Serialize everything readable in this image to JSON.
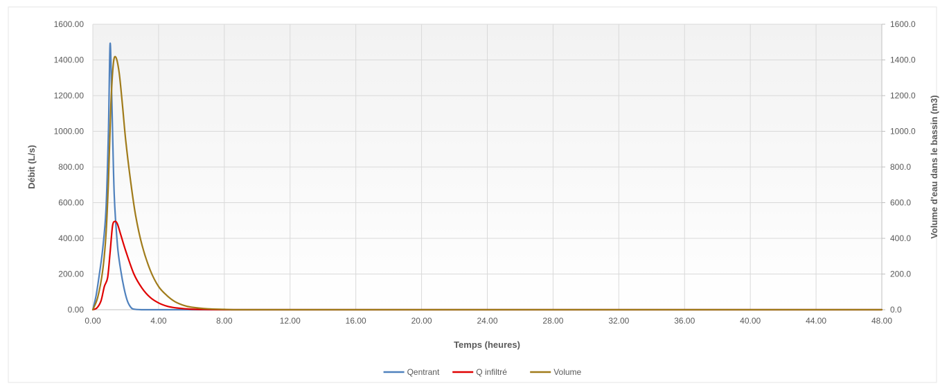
{
  "chart_data": {
    "type": "line",
    "title": "",
    "xlabel": "Temps (heures)",
    "ylabel": "Débit (L/s)",
    "y2label": "Volume d'eau dans le bassin (m3)",
    "xlim": [
      0,
      48
    ],
    "ylim": [
      0,
      1600
    ],
    "y2lim": [
      0,
      1600
    ],
    "grid": true,
    "legend_position": "bottom",
    "x_ticks": [
      "0.00",
      "4.00",
      "8.00",
      "12.00",
      "16.00",
      "20.00",
      "24.00",
      "28.00",
      "32.00",
      "36.00",
      "40.00",
      "44.00",
      "48.00"
    ],
    "y_ticks": [
      "0.00",
      "200.00",
      "400.00",
      "600.00",
      "800.00",
      "1000.00",
      "1200.00",
      "1400.00",
      "1600.00"
    ],
    "y2_ticks": [
      "0.0",
      "200.0",
      "400.0",
      "600.0",
      "800.0",
      "1000.0",
      "1200.0",
      "1400.0",
      "1600.0"
    ],
    "series": [
      {
        "name": "Qentrant",
        "axis": "left",
        "color": "#4F81BD",
        "x": [
          0,
          0.2,
          0.4,
          0.6,
          0.8,
          0.95,
          1.05,
          1.15,
          1.3,
          1.5,
          1.7,
          1.9,
          2.1,
          2.3,
          2.5,
          3,
          4,
          8,
          48
        ],
        "y": [
          0,
          80,
          200,
          340,
          560,
          1000,
          1490,
          1200,
          650,
          360,
          220,
          120,
          50,
          15,
          3,
          0,
          0,
          0,
          0
        ]
      },
      {
        "name": "Q infiltré",
        "axis": "left",
        "color": "#E00000",
        "x": [
          0,
          0.25,
          0.5,
          0.7,
          0.9,
          1.05,
          1.2,
          1.35,
          1.5,
          1.7,
          2,
          2.5,
          3,
          3.5,
          4,
          4.5,
          5,
          6,
          7,
          8,
          12,
          48
        ],
        "y": [
          0,
          10,
          50,
          130,
          180,
          320,
          470,
          495,
          480,
          420,
          330,
          200,
          120,
          68,
          38,
          20,
          11,
          3,
          1,
          0,
          0,
          0
        ]
      },
      {
        "name": "Volume",
        "axis": "right",
        "color": "#A07B1A",
        "x": [
          0,
          0.3,
          0.6,
          0.8,
          0.95,
          1.1,
          1.25,
          1.4,
          1.6,
          1.8,
          2,
          2.3,
          2.6,
          3,
          3.5,
          4,
          4.5,
          5,
          5.5,
          6,
          7,
          8,
          9,
          12,
          48
        ],
        "y": [
          0,
          70,
          220,
          420,
          720,
          1150,
          1380,
          1415,
          1330,
          1150,
          950,
          720,
          530,
          360,
          220,
          130,
          80,
          45,
          25,
          14,
          5,
          2,
          0,
          0,
          0
        ]
      }
    ]
  }
}
